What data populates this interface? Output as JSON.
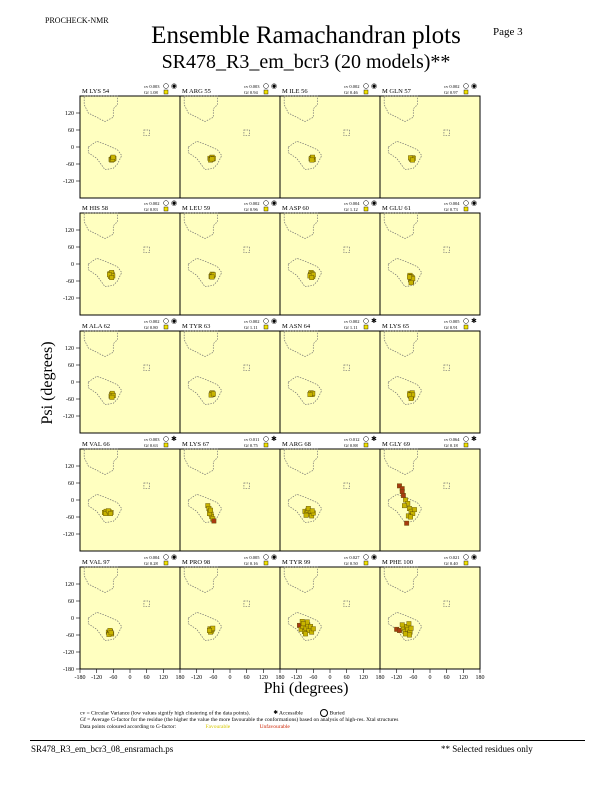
{
  "header": {
    "program": "PROCHECK-NMR",
    "title": "Ensemble Ramachandran plots",
    "subtitle": "SR478_R3_em_bcr3 (20 models)**",
    "page_label": "Page  3"
  },
  "axes": {
    "xlabel": "Phi (degrees)",
    "ylabel": "Psi (degrees)",
    "xticks": [
      "-180",
      "-120",
      "-60",
      "0",
      "60",
      "120",
      "180"
    ],
    "yticks": [
      "120",
      "60",
      "0",
      "-60",
      "-120",
      "-180"
    ]
  },
  "legend": {
    "cv_text": "cv = Circular Variance (low values signify high clustering of the data points).",
    "accessible": "Accessible",
    "buried": "Buried",
    "gf_text": "Gf = Average G-factor for the residue (the higher the value the more favourable the conformations) based on analysis of high-res. Xtal structures",
    "colour_text": "Data points coloured according to G-factor:",
    "favourable": "Favourable",
    "unfavourable": "Unfavourable"
  },
  "footer": {
    "file": "SR478_R3_em_bcr3_08_ensramach.ps",
    "note": "** Selected residues only"
  },
  "colors": {
    "panel_bg": "#ffffc0",
    "point_fill": "#c8b400",
    "point_unfav": "#a83a10",
    "region_line": "#707070"
  },
  "chart_data": {
    "type": "scatter",
    "xlim": [
      -180,
      180
    ],
    "ylim": [
      -180,
      180
    ],
    "panels": [
      {
        "label": "M LYS 54",
        "cv": "0.003",
        "gf": "1.08",
        "access": "buried",
        "points": [
          [
            -68,
            -44
          ],
          [
            -64,
            -40
          ],
          [
            -60,
            -42
          ],
          [
            -62,
            -38
          ],
          [
            -66,
            -46
          ],
          [
            -58,
            -40
          ],
          [
            -63,
            -44
          ],
          [
            -61,
            -36
          ]
        ]
      },
      {
        "label": "M ARG 55",
        "cv": "0.003",
        "gf": "0.94",
        "access": "buried",
        "points": [
          [
            -72,
            -40
          ],
          [
            -66,
            -38
          ],
          [
            -62,
            -42
          ],
          [
            -68,
            -44
          ],
          [
            -64,
            -36
          ],
          [
            -60,
            -40
          ],
          [
            -70,
            -46
          ],
          [
            -65,
            -42
          ]
        ]
      },
      {
        "label": "M ILE 56",
        "cv": "0.002",
        "gf": "0.46",
        "access": "buried",
        "points": [
          [
            -66,
            -40
          ],
          [
            -62,
            -42
          ],
          [
            -64,
            -38
          ],
          [
            -60,
            -44
          ],
          [
            -68,
            -42
          ],
          [
            -63,
            -36
          ],
          [
            -65,
            -46
          ]
        ]
      },
      {
        "label": "M GLN 57",
        "cv": "0.002",
        "gf": "0.97",
        "access": "buried",
        "points": [
          [
            -68,
            -40
          ],
          [
            -64,
            -42
          ],
          [
            -62,
            -38
          ],
          [
            -66,
            -44
          ],
          [
            -60,
            -40
          ],
          [
            -70,
            -38
          ],
          [
            -63,
            -46
          ]
        ]
      },
      {
        "label": "M HIS 58",
        "cv": "0.002",
        "gf": "0.83",
        "access": "buried",
        "points": [
          [
            -72,
            -34
          ],
          [
            -68,
            -40
          ],
          [
            -64,
            -36
          ],
          [
            -70,
            -44
          ],
          [
            -66,
            -30
          ],
          [
            -62,
            -42
          ],
          [
            -74,
            -38
          ],
          [
            -66,
            -48
          ]
        ]
      },
      {
        "label": "M LEU 59",
        "cv": "0.002",
        "gf": "0.96",
        "access": "buried",
        "points": [
          [
            -66,
            -40
          ],
          [
            -62,
            -42
          ],
          [
            -64,
            -36
          ],
          [
            -68,
            -44
          ],
          [
            -60,
            -38
          ],
          [
            -65,
            -46
          ]
        ]
      },
      {
        "label": "M ASP 60",
        "cv": "0.004",
        "gf": "1.12",
        "access": "buried",
        "points": [
          [
            -70,
            -36
          ],
          [
            -66,
            -40
          ],
          [
            -62,
            -44
          ],
          [
            -68,
            -30
          ],
          [
            -64,
            -34
          ],
          [
            -72,
            -42
          ],
          [
            -60,
            -38
          ],
          [
            -66,
            -48
          ]
        ]
      },
      {
        "label": "M GLU 61",
        "cv": "0.004",
        "gf": "0.73",
        "access": "buried",
        "points": [
          [
            -72,
            -40
          ],
          [
            -68,
            -44
          ],
          [
            -64,
            -48
          ],
          [
            -70,
            -56
          ],
          [
            -66,
            -62
          ],
          [
            -62,
            -52
          ],
          [
            -74,
            -46
          ],
          [
            -68,
            -66
          ]
        ]
      },
      {
        "label": "M ALA 62",
        "cv": "0.002",
        "gf": "0.80",
        "access": "buried",
        "points": [
          [
            -66,
            -44
          ],
          [
            -62,
            -46
          ],
          [
            -64,
            -40
          ],
          [
            -68,
            -50
          ],
          [
            -60,
            -48
          ],
          [
            -65,
            -54
          ]
        ]
      },
      {
        "label": "M TYR 63",
        "cv": "0.002",
        "gf": "1.11",
        "access": "buried",
        "points": [
          [
            -66,
            -40
          ],
          [
            -62,
            -44
          ],
          [
            -64,
            -38
          ],
          [
            -68,
            -46
          ],
          [
            -60,
            -42
          ]
        ]
      },
      {
        "label": "M ASN 64",
        "cv": "0.002",
        "gf": "1.11",
        "access": "accessible",
        "points": [
          [
            -70,
            -40
          ],
          [
            -66,
            -42
          ],
          [
            -68,
            -38
          ],
          [
            -64,
            -44
          ],
          [
            -62,
            -40
          ],
          [
            -72,
            -44
          ]
        ]
      },
      {
        "label": "M LYS 65",
        "cv": "0.005",
        "gf": "0.91",
        "access": "accessible",
        "points": [
          [
            -72,
            -40
          ],
          [
            -68,
            -44
          ],
          [
            -64,
            -38
          ],
          [
            -70,
            -50
          ],
          [
            -66,
            -54
          ],
          [
            -62,
            -46
          ],
          [
            -74,
            -46
          ],
          [
            -68,
            -58
          ]
        ]
      },
      {
        "label": "M VAL 66",
        "cv": "0.003",
        "gf": "0.63",
        "access": "accessible",
        "points": [
          [
            -92,
            -44
          ],
          [
            -86,
            -40
          ],
          [
            -80,
            -46
          ],
          [
            -74,
            -42
          ],
          [
            -68,
            -44
          ],
          [
            -88,
            -48
          ],
          [
            -78,
            -38
          ],
          [
            -70,
            -48
          ]
        ]
      },
      {
        "label": "M LYS 67",
        "cv": "0.011",
        "gf": "0.75",
        "access": "accessible",
        "points": [
          [
            -80,
            -20
          ],
          [
            -76,
            -30
          ],
          [
            -72,
            -40
          ],
          [
            -68,
            -50
          ],
          [
            -66,
            -58
          ],
          [
            -62,
            -66
          ],
          [
            -58,
            -74
          ],
          [
            -74,
            -48
          ],
          [
            -70,
            -36
          ]
        ]
      },
      {
        "label": "M ARG 68",
        "cv": "0.012",
        "gf": "0.88",
        "access": "accessible",
        "points": [
          [
            -90,
            -40
          ],
          [
            -84,
            -46
          ],
          [
            -80,
            -36
          ],
          [
            -74,
            -50
          ],
          [
            -70,
            -40
          ],
          [
            -66,
            -56
          ],
          [
            -60,
            -46
          ],
          [
            -78,
            -30
          ],
          [
            -64,
            -38
          ],
          [
            -86,
            -54
          ]
        ]
      },
      {
        "label": "M GLY 69",
        "cv": "0.064",
        "gf": "0.18",
        "access": "accessible",
        "points": [
          [
            -110,
            50
          ],
          [
            -100,
            40
          ],
          [
            -96,
            16
          ],
          [
            -88,
            0
          ],
          [
            -80,
            -12
          ],
          [
            -74,
            -30
          ],
          [
            -68,
            -40
          ],
          [
            -62,
            -48
          ],
          [
            -56,
            -34
          ],
          [
            -84,
            -82
          ],
          [
            -78,
            -56
          ],
          [
            -92,
            -20
          ],
          [
            -100,
            30
          ],
          [
            -70,
            -60
          ]
        ]
      },
      {
        "label": "M VAL 97",
        "cv": "0.004",
        "gf": "0.28",
        "access": "buried",
        "points": [
          [
            -78,
            -50
          ],
          [
            -74,
            -54
          ],
          [
            -70,
            -48
          ],
          [
            -66,
            -56
          ],
          [
            -76,
            -58
          ],
          [
            -72,
            -44
          ],
          [
            -68,
            -52
          ]
        ]
      },
      {
        "label": "M PRO 98",
        "cv": "0.005",
        "gf": "0.16",
        "access": "buried",
        "points": [
          [
            -72,
            -38
          ],
          [
            -68,
            -42
          ],
          [
            -66,
            -46
          ],
          [
            -70,
            -50
          ],
          [
            -64,
            -40
          ],
          [
            -62,
            -36
          ],
          [
            -74,
            -44
          ]
        ]
      },
      {
        "label": "M TYR 99",
        "cv": "0.027",
        "gf": "0.50",
        "access": "buried",
        "points": [
          [
            -110,
            -26
          ],
          [
            -104,
            -40
          ],
          [
            -98,
            -30
          ],
          [
            -92,
            -48
          ],
          [
            -86,
            -36
          ],
          [
            -80,
            -24
          ],
          [
            -76,
            -44
          ],
          [
            -70,
            -30
          ],
          [
            -66,
            -50
          ],
          [
            -60,
            -38
          ],
          [
            -100,
            -12
          ],
          [
            -88,
            -56
          ],
          [
            -82,
            -14
          ],
          [
            -96,
            -20
          ]
        ]
      },
      {
        "label": "M PHE 100",
        "cv": "0.021",
        "gf": "0.40",
        "access": "buried",
        "points": [
          [
            -120,
            -40
          ],
          [
            -110,
            -44
          ],
          [
            -96,
            -36
          ],
          [
            -90,
            -48
          ],
          [
            -84,
            -30
          ],
          [
            -80,
            -40
          ],
          [
            -76,
            -20
          ],
          [
            -72,
            -50
          ],
          [
            -68,
            -36
          ],
          [
            -100,
            -24
          ],
          [
            -88,
            -56
          ],
          [
            -74,
            -60
          ]
        ]
      }
    ]
  }
}
